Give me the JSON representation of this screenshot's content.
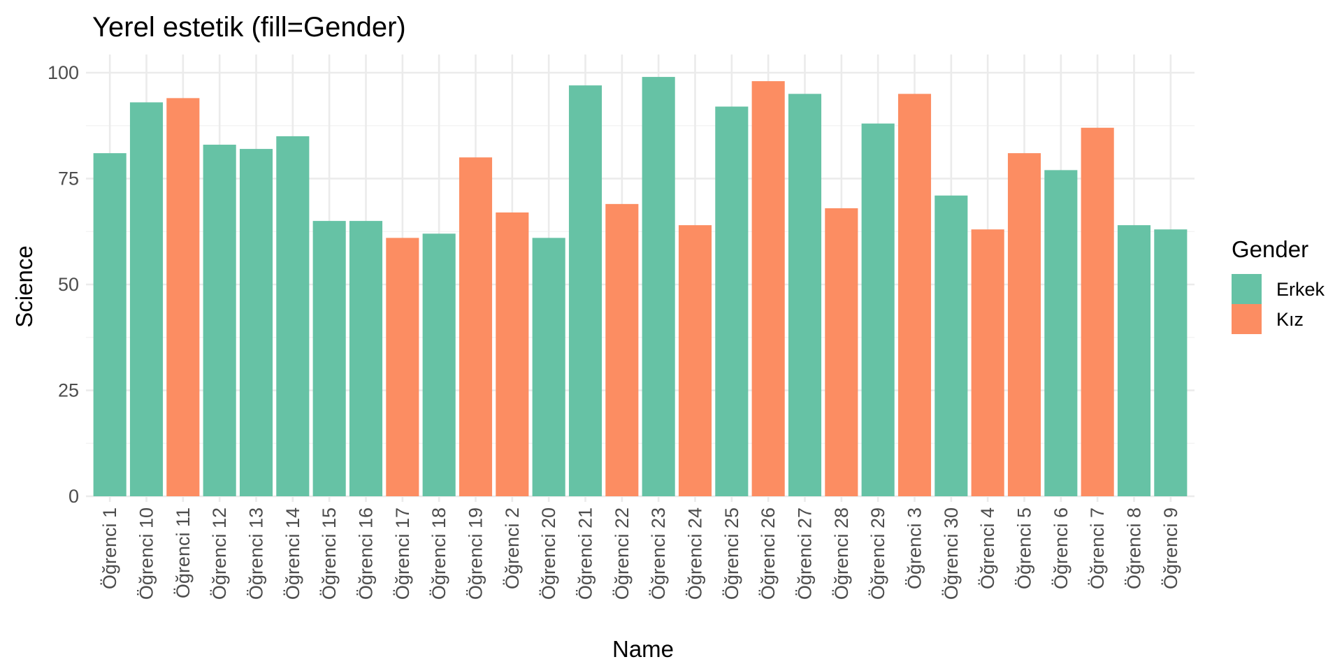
{
  "chart_data": {
    "type": "bar",
    "title": "Yerel estetik (fill=Gender)",
    "xlabel": "Name",
    "ylabel": "Science",
    "ylim": [
      0,
      100
    ],
    "yticks": [
      0,
      25,
      50,
      75,
      100
    ],
    "grid": true,
    "legend": {
      "title": "Gender",
      "placement": "right",
      "entries": [
        {
          "label": "Erkek",
          "color": "#66C2A5"
        },
        {
          "label": "Kız",
          "color": "#FC8D62"
        }
      ]
    },
    "categories": [
      "Öğrenci 1",
      "Öğrenci 10",
      "Öğrenci 11",
      "Öğrenci 12",
      "Öğrenci 13",
      "Öğrenci 14",
      "Öğrenci 15",
      "Öğrenci 16",
      "Öğrenci 17",
      "Öğrenci 18",
      "Öğrenci 19",
      "Öğrenci 2",
      "Öğrenci 20",
      "Öğrenci 21",
      "Öğrenci 22",
      "Öğrenci 23",
      "Öğrenci 24",
      "Öğrenci 25",
      "Öğrenci 26",
      "Öğrenci 27",
      "Öğrenci 28",
      "Öğrenci 29",
      "Öğrenci 3",
      "Öğrenci 30",
      "Öğrenci 4",
      "Öğrenci 5",
      "Öğrenci 6",
      "Öğrenci 7",
      "Öğrenci 8",
      "Öğrenci 9"
    ],
    "values": [
      81,
      93,
      94,
      83,
      82,
      85,
      65,
      65,
      61,
      62,
      80,
      67,
      61,
      97,
      69,
      99,
      64,
      92,
      98,
      95,
      68,
      88,
      95,
      71,
      63,
      81,
      77,
      87,
      64,
      63
    ],
    "groups": [
      "Erkek",
      "Erkek",
      "Kız",
      "Erkek",
      "Erkek",
      "Erkek",
      "Erkek",
      "Erkek",
      "Kız",
      "Erkek",
      "Kız",
      "Kız",
      "Erkek",
      "Erkek",
      "Kız",
      "Erkek",
      "Kız",
      "Erkek",
      "Kız",
      "Erkek",
      "Kız",
      "Erkek",
      "Kız",
      "Erkek",
      "Kız",
      "Kız",
      "Erkek",
      "Kız",
      "Erkek",
      "Erkek"
    ]
  }
}
